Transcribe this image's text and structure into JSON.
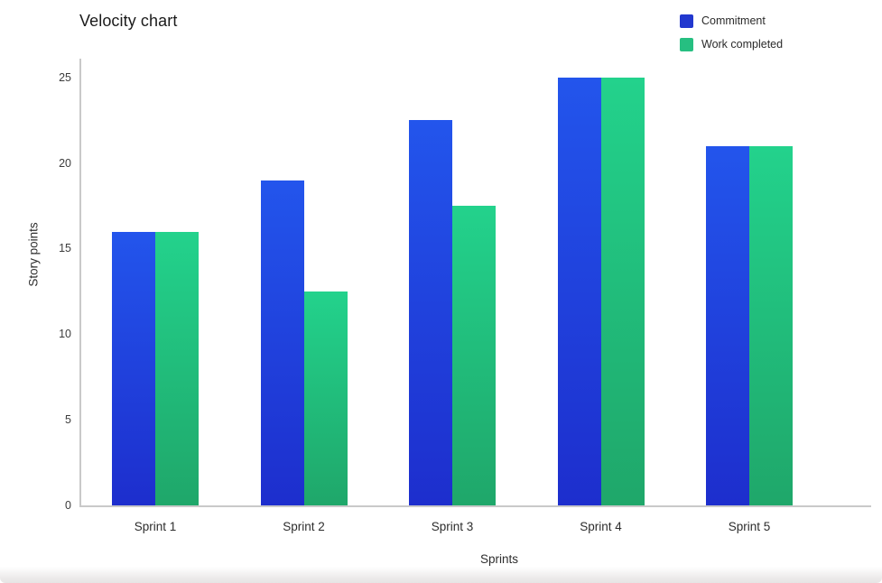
{
  "title": "Velocity chart",
  "legend": {
    "position": "top-right",
    "items": [
      {
        "label": "Commitment",
        "color": "#2238cf"
      },
      {
        "label": "Work completed",
        "color": "#26bf81"
      }
    ]
  },
  "chart_data": {
    "type": "bar",
    "title": "Velocity chart",
    "categories": [
      "Sprint 1",
      "Sprint 2",
      "Sprint 3",
      "Sprint 4",
      "Sprint 5"
    ],
    "series": [
      {
        "name": "Commitment",
        "values": [
          16,
          19,
          22.5,
          25,
          21
        ],
        "legend_color": "#2238cf",
        "bar_color_top": "#2355ec",
        "bar_color_bottom": "#1d2ecd"
      },
      {
        "name": "Work completed",
        "values": [
          16,
          12.5,
          17.5,
          25,
          21
        ],
        "legend_color": "#26bf81",
        "bar_color_top": "#23d28c",
        "bar_color_bottom": "#1fa76a"
      }
    ],
    "xlabel": "Sprints",
    "ylabel": "Story points",
    "yticks": [
      0,
      5,
      10,
      15,
      20,
      25
    ],
    "ylim": [
      0,
      26.2
    ],
    "grid": false,
    "legend_position": "top-right",
    "axis_color": "#c9c9c9"
  }
}
